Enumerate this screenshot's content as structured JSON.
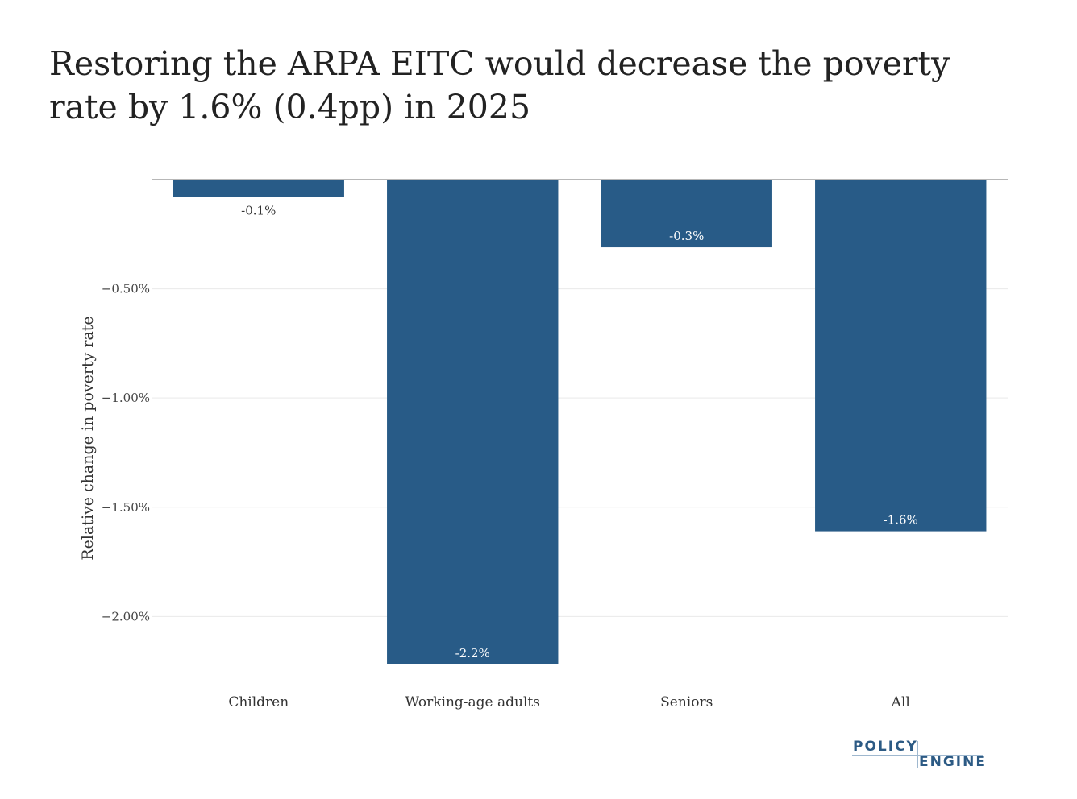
{
  "chart_data": {
    "type": "bar",
    "title": "Restoring the ARPA EITC would decrease the poverty rate by 1.6% (0.4pp) in 2025",
    "xlabel": "",
    "ylabel": "Relative change in poverty rate",
    "categories": [
      "Children",
      "Working-age adults",
      "Seniors",
      "All"
    ],
    "values": [
      -0.08,
      -2.22,
      -0.31,
      -1.61
    ],
    "data_labels": [
      "-0.1%",
      "-2.2%",
      "-0.3%",
      "-1.6%"
    ],
    "ylim": [
      -2.22,
      0
    ],
    "yticks": [
      -0.5,
      -1.0,
      -1.5,
      -2.0
    ],
    "ytick_labels": [
      "−0.50%",
      "−1.00%",
      "−1.50%",
      "−2.00%"
    ],
    "grid": true,
    "bar_color": "#285b87"
  },
  "logo": {
    "line1": "POLICY",
    "line2": "ENGINE"
  }
}
